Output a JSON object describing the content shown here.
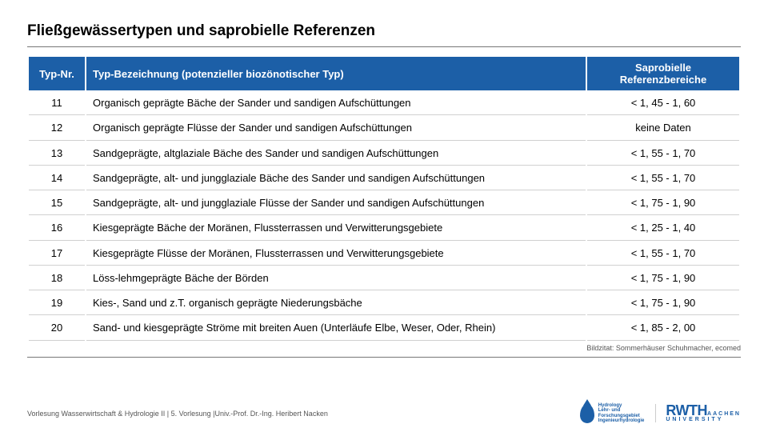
{
  "title": "Fließgewässertypen und saprobielle Referenzen",
  "table": {
    "type": "table",
    "header_bg": "#1c5fa7",
    "header_fg": "#ffffff",
    "columns": [
      {
        "key": "nr",
        "label": "Typ-Nr.",
        "align": "center",
        "width": 70
      },
      {
        "key": "bez",
        "label": "Typ-Bezeichnung (potenzieller biozönotischer Typ)",
        "align": "left"
      },
      {
        "key": "ref",
        "label": "Saprobielle Referenzbereiche",
        "align": "center",
        "width": 190
      }
    ],
    "rows": [
      {
        "nr": "11",
        "bez": "Organisch geprägte Bäche der Sander und sandigen Aufschüttungen",
        "ref": "< 1, 45 - 1, 60"
      },
      {
        "nr": "12",
        "bez": "Organisch geprägte Flüsse der Sander und sandigen Aufschüttungen",
        "ref": "keine Daten"
      },
      {
        "nr": "13",
        "bez": "Sandgeprägte, altglaziale Bäche des Sander und sandigen Aufschüttungen",
        "ref": "< 1, 55 - 1, 70"
      },
      {
        "nr": "14",
        "bez": "Sandgeprägte, alt- und jungglaziale Bäche des Sander und sandigen Aufschüttungen",
        "ref": "< 1, 55 - 1, 70"
      },
      {
        "nr": "15",
        "bez": "Sandgeprägte, alt- und jungglaziale Flüsse der Sander und sandigen Aufschüttungen",
        "ref": "< 1, 75 - 1, 90"
      },
      {
        "nr": "16",
        "bez": "Kiesgeprägte Bäche der Moränen, Flussterrassen und Verwitterungsgebiete",
        "ref": "< 1, 25 - 1, 40"
      },
      {
        "nr": "17",
        "bez": "Kiesgeprägte Flüsse der Moränen, Flussterrassen und Verwitterungsgebiete",
        "ref": "< 1, 55 - 1, 70"
      },
      {
        "nr": "18",
        "bez": "Löss-lehmgeprägte Bäche der Börden",
        "ref": "< 1, 75 - 1, 90"
      },
      {
        "nr": "19",
        "bez": "Kies-, Sand und z.T. organisch geprägte Niederungsbäche",
        "ref": "< 1, 75 - 1, 90"
      },
      {
        "nr": "20",
        "bez": "Sand- und kiesgeprägte Ströme mit breiten Auen (Unterläufe Elbe, Weser, Oder, Rhein)",
        "ref": "< 1, 85 - 2, 00"
      }
    ]
  },
  "citation": "Bildzitat: Sommerhäuser Schuhmacher, ecomed",
  "footer": "Vorlesung Wasserwirtschaft & Hydrologie II | 5. Vorlesung |Univ.-Prof. Dr.-Ing. Heribert Nacken",
  "logos": {
    "hydro_lines": [
      "Hydrology",
      "Lehr- und",
      "Forschungsgebiet",
      "Ingenieurhydrologie"
    ],
    "rwth_main": "RWTH",
    "rwth_sub": "AACHEN",
    "rwth_sub2": "UNIVERSITY",
    "brand_color": "#1c5fa7"
  }
}
